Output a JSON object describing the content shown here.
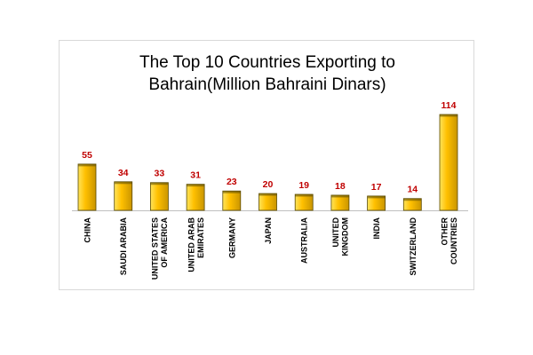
{
  "chart_data": {
    "type": "bar",
    "title_lines": [
      "The Top 10 Countries Exporting to",
      "Bahrain(Million Bahraini Dinars)"
    ],
    "categories": [
      [
        "CHINA"
      ],
      [
        "SAUDI ARABIA"
      ],
      [
        "UNITED STATES",
        "OF AMERICA"
      ],
      [
        "UNITED ARAB",
        "EMIRATES"
      ],
      [
        "GERMANY"
      ],
      [
        "JAPAN"
      ],
      [
        "AUSTRALIA"
      ],
      [
        "UNITED",
        "KINGDOM"
      ],
      [
        "INDIA"
      ],
      [
        "SWITZERLAND"
      ],
      [
        "OTHER",
        "COUNTRIES"
      ]
    ],
    "values": [
      55,
      34,
      33,
      31,
      23,
      20,
      19,
      18,
      17,
      14,
      114
    ],
    "ylim": [
      0,
      114
    ],
    "grid": false,
    "legend": "none",
    "colors": {
      "bar_fill": "#ffc000",
      "bar_highlight": "#ffe45c",
      "bar_shadow": "#c99500",
      "bar_outline": "#5a4a00",
      "value_label": "#c00000",
      "axis": "#bfbfbf"
    }
  }
}
